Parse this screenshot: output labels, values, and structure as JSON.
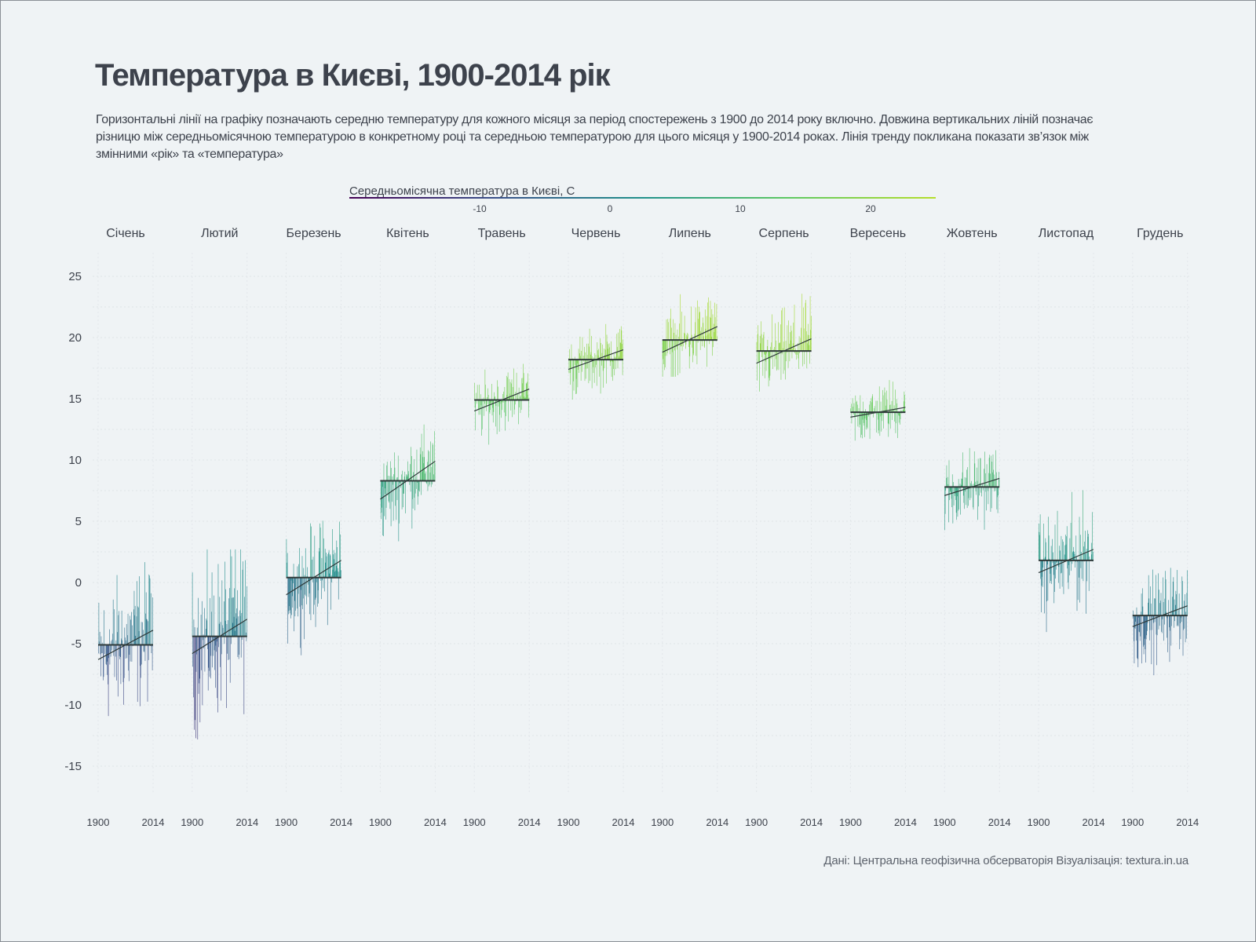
{
  "chart_data": {
    "type": "bar",
    "title": "Температура в Києві, 1900-2014 рік",
    "subtitle": "Горизонтальні лінії на графіку позначають середню температуру для кожного місяця за період спостережень з 1900 до 2014 року включно. Довжина вертикальних ліній позначає різницю між середньомісячною температурою в конкретному році та середньою температурою для цього місяця у 1900-2014 роках. Лінія тренду покликана показати зв’язок між змінними «рік» та «температура»",
    "legend": {
      "title": "Середньомісячна температура в Києві, С",
      "ticks": [
        "-10",
        "0",
        "10",
        "20"
      ],
      "tick_values": [
        -10,
        0,
        10,
        20
      ],
      "range": [
        -20,
        25
      ],
      "colors": [
        "#440154",
        "#3b528b",
        "#21918c",
        "#5ec962",
        "#b5de2b"
      ]
    },
    "ylim": [
      -17,
      27
    ],
    "y_ticks": [
      "25",
      "20",
      "15",
      "10",
      "5",
      "0",
      "-5",
      "-10",
      "-15"
    ],
    "y_tick_values": [
      25,
      20,
      15,
      10,
      5,
      0,
      -5,
      -10,
      -15
    ],
    "x_range": [
      1900,
      2014
    ],
    "x_tick_labels": [
      "1900",
      "2014"
    ],
    "months": [
      {
        "label": "Січень",
        "mean": -5.1,
        "min": -15.0,
        "max": 2.2,
        "trend": [
          -6.3,
          -3.9
        ]
      },
      {
        "label": "Лютий",
        "mean": -4.4,
        "min": -15.9,
        "max": 2.7,
        "trend": [
          -5.8,
          -3.0
        ]
      },
      {
        "label": "Березень",
        "mean": 0.4,
        "min": -6.9,
        "max": 6.8,
        "trend": [
          -1.0,
          1.8
        ]
      },
      {
        "label": "Квітень",
        "mean": 8.3,
        "min": 2.0,
        "max": 12.9,
        "trend": [
          6.8,
          9.9
        ]
      },
      {
        "label": "Травень",
        "mean": 14.9,
        "min": 10.4,
        "max": 19.4,
        "trend": [
          14.0,
          15.8
        ]
      },
      {
        "label": "Червень",
        "mean": 18.2,
        "min": 14.3,
        "max": 22.6,
        "trend": [
          17.4,
          19.0
        ]
      },
      {
        "label": "Липень",
        "mean": 19.8,
        "min": 16.8,
        "max": 25.5,
        "trend": [
          18.8,
          20.9
        ]
      },
      {
        "label": "Серпень",
        "mean": 18.9,
        "min": 15.5,
        "max": 24.7,
        "trend": [
          17.9,
          19.9
        ]
      },
      {
        "label": "Вересень",
        "mean": 13.9,
        "min": 11.0,
        "max": 18.3,
        "trend": [
          13.5,
          14.3
        ]
      },
      {
        "label": "Жовтень",
        "mean": 7.8,
        "min": 2.3,
        "max": 12.4,
        "trend": [
          7.1,
          8.5
        ]
      },
      {
        "label": "Листопад",
        "mean": 1.8,
        "min": -6.0,
        "max": 8.0,
        "trend": [
          0.8,
          2.7
        ]
      },
      {
        "label": "Грудень",
        "mean": -2.7,
        "min": -9.3,
        "max": 2.6,
        "trend": [
          -3.6,
          -1.9
        ]
      }
    ]
  },
  "footer": "Дані: Центральна геофізична обсерваторія Візуалізація: textura.in.ua"
}
